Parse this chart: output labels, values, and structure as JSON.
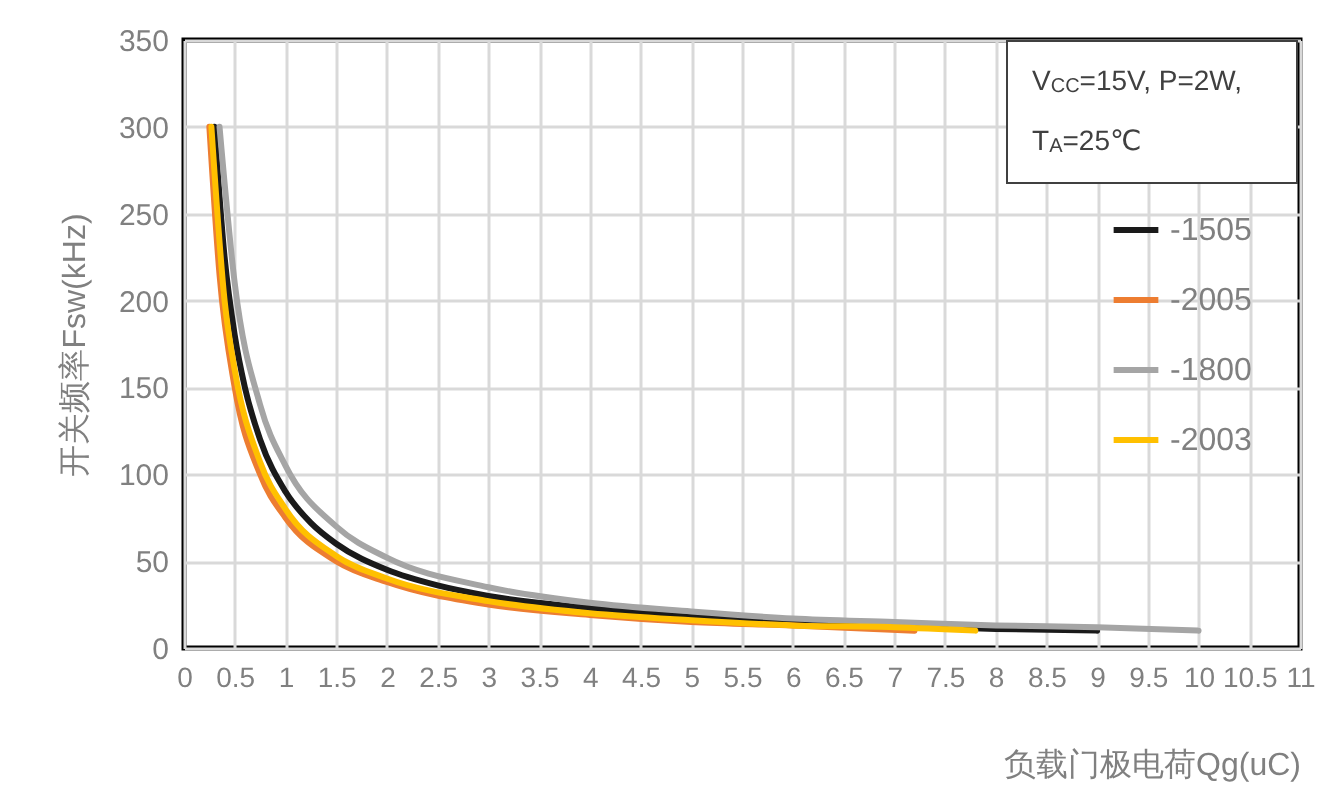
{
  "chart_data": {
    "type": "line",
    "xlabel": "负载门极电荷Qg(uC)",
    "ylabel": "开关频率Fsw(kHz)",
    "annotations": [
      "V$_{CC}$=15V, P=2W,",
      "T$_{A}$=25℃"
    ],
    "xlim": [
      0,
      11
    ],
    "ylim": [
      0,
      350
    ],
    "xticks": [
      0,
      0.5,
      1,
      1.5,
      2,
      2.5,
      3,
      3.5,
      4,
      4.5,
      5,
      5.5,
      6,
      6.5,
      7,
      7.5,
      8,
      8.5,
      9,
      9.5,
      10,
      10.5,
      11
    ],
    "yticks": [
      0,
      50,
      100,
      150,
      200,
      250,
      300,
      350
    ],
    "grid": true,
    "legend": "right",
    "marker": "none",
    "line_style": "solid",
    "series": [
      {
        "name": "-1505",
        "color": "#1a1a1a",
        "x": [
          0.3,
          0.4,
          0.5,
          0.6,
          0.75,
          1,
          1.25,
          1.5,
          2,
          2.5,
          3,
          4,
          5,
          6,
          7,
          8,
          9
        ],
        "values": [
          300,
          225,
          180,
          150,
          120,
          90,
          72,
          60,
          45,
          36,
          30,
          23,
          18,
          15,
          13,
          11,
          10
        ]
      },
      {
        "name": "-2005",
        "color": "#ed7d31",
        "x": [
          0.25,
          0.35,
          0.5,
          0.75,
          1,
          1.5,
          2,
          3,
          4,
          5,
          6,
          7.2
        ],
        "values": [
          300,
          215,
          150,
          100,
          75,
          50,
          38,
          25,
          19,
          15,
          13,
          10
        ]
      },
      {
        "name": "-1800",
        "color": "#a5a5a5",
        "x": [
          0.35,
          0.5,
          0.75,
          1,
          1.5,
          2,
          3,
          4,
          5,
          6,
          7,
          8,
          9,
          10
        ],
        "values": [
          300,
          210,
          140,
          105,
          70,
          52,
          35,
          26,
          21,
          17,
          15,
          13,
          12,
          10
        ]
      },
      {
        "name": "-2003",
        "color": "#ffc000",
        "x": [
          0.27,
          0.4,
          0.5,
          0.75,
          1,
          1.5,
          2,
          3,
          4,
          5,
          6,
          7,
          7.8
        ],
        "values": [
          300,
          200,
          160,
          107,
          80,
          53,
          40,
          27,
          20,
          16,
          13,
          12,
          10
        ]
      }
    ]
  }
}
